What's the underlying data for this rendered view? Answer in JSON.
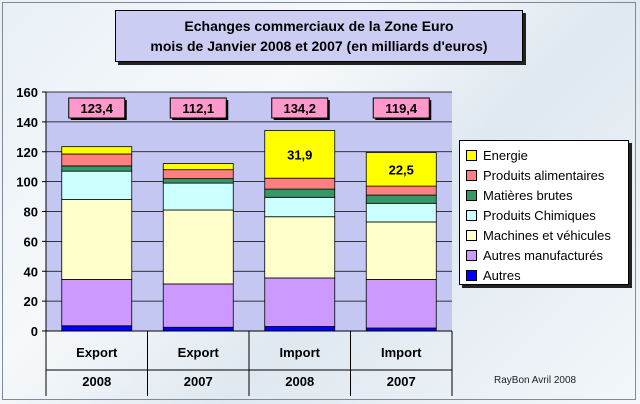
{
  "title": {
    "line1": "Echanges commerciaux de la Zone Euro",
    "line2": "mois de Janvier 2008 et 2007 (en milliards d'euros)"
  },
  "credit": "RayBon Avril 2008",
  "chart_data": {
    "type": "bar",
    "stacked": true,
    "categories": [
      {
        "label": "Export",
        "year": "2008"
      },
      {
        "label": "Export",
        "year": "2007"
      },
      {
        "label": "Import",
        "year": "2008"
      },
      {
        "label": "Import",
        "year": "2007"
      }
    ],
    "totals": [
      "123,4",
      "112,1",
      "134,2",
      "119,4"
    ],
    "ylim": [
      0,
      160
    ],
    "yticks": [
      0,
      20,
      40,
      60,
      80,
      100,
      120,
      140,
      160
    ],
    "grid": true,
    "legend_position": "right",
    "series": [
      {
        "name": "Autres",
        "color": "#0000ff",
        "values": [
          3.5,
          2.5,
          3.0,
          2.0
        ]
      },
      {
        "name": "Autres manufacturés",
        "color": "#cc99ff",
        "values": [
          31.0,
          29.0,
          32.5,
          32.5
        ]
      },
      {
        "name": "Machines et véhicules",
        "color": "#ffffcc",
        "values": [
          53.5,
          49.5,
          41.0,
          38.5
        ]
      },
      {
        "name": "Produits Chimiques",
        "color": "#ccffff",
        "values": [
          19.0,
          18.0,
          13.0,
          12.5
        ]
      },
      {
        "name": "Matières brutes",
        "color": "#339966",
        "values": [
          3.5,
          3.0,
          5.5,
          5.5
        ]
      },
      {
        "name": "Produits alimentaires",
        "color": "#ff8080",
        "values": [
          8.0,
          6.0,
          7.3,
          6.0
        ]
      },
      {
        "name": "Energie",
        "color": "#ffff00",
        "values": [
          4.9,
          4.1,
          31.9,
          22.5
        ],
        "data_labels": [
          "",
          "",
          "31,9",
          "22,5"
        ]
      }
    ]
  }
}
